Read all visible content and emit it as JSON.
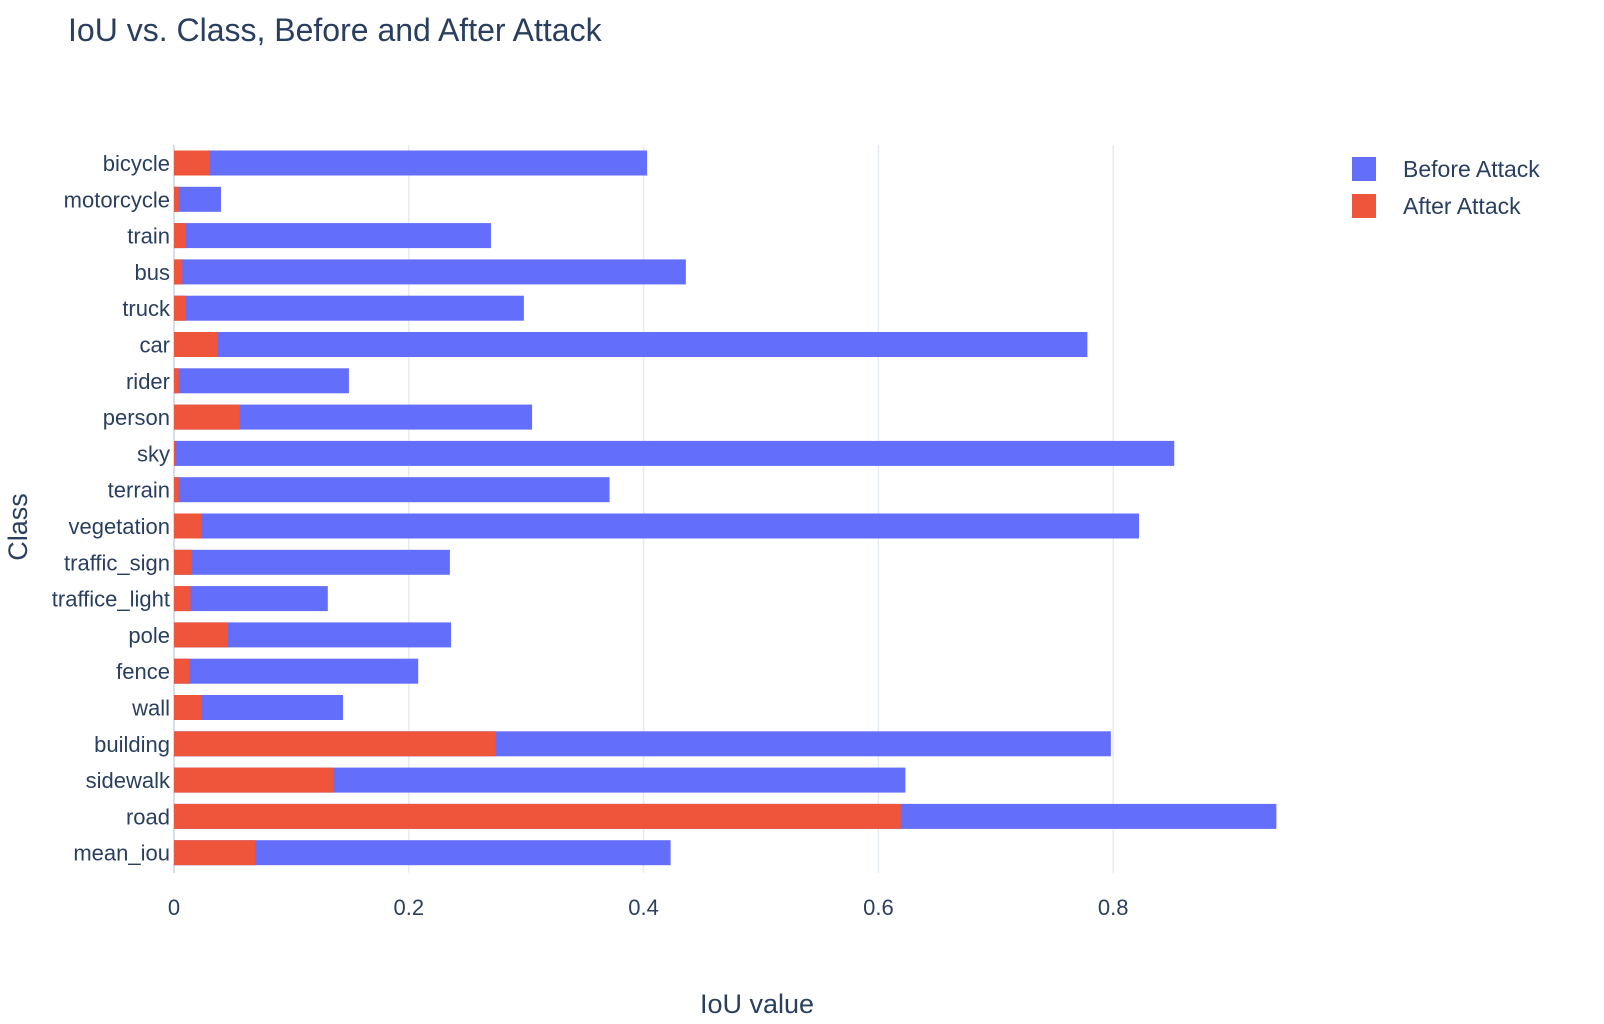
{
  "chart_data": {
    "type": "bar",
    "orientation": "horizontal",
    "barmode": "overlay",
    "title": "IoU vs. Class, Before and After Attack",
    "xlabel": "IoU value",
    "ylabel": "Class",
    "xlim": [
      0,
      0.94
    ],
    "xticks": [
      0,
      0.2,
      0.4,
      0.6,
      0.8
    ],
    "xtick_labels": [
      "0",
      "0.2",
      "0.4",
      "0.6",
      "0.8"
    ],
    "grid": true,
    "legend_position": "top-right",
    "categories": [
      "bicycle",
      "motorcycle",
      "train",
      "bus",
      "truck",
      "car",
      "rider",
      "person",
      "sky",
      "terrain",
      "vegetation",
      "traffic_sign",
      "traffice_light",
      "pole",
      "fence",
      "wall",
      "building",
      "sidewalk",
      "road",
      "mean_iou"
    ],
    "series": [
      {
        "name": "Before Attack",
        "color": "#636efa",
        "values": [
          0.403,
          0.04,
          0.27,
          0.436,
          0.298,
          0.778,
          0.149,
          0.305,
          0.852,
          0.371,
          0.822,
          0.235,
          0.131,
          0.236,
          0.208,
          0.144,
          0.798,
          0.623,
          0.939,
          0.423
        ]
      },
      {
        "name": "After Attack",
        "color": "#ef553b",
        "values": [
          0.03,
          0.004,
          0.01,
          0.007,
          0.01,
          0.037,
          0.004,
          0.056,
          0.001,
          0.004,
          0.023,
          0.015,
          0.014,
          0.046,
          0.013,
          0.023,
          0.274,
          0.136,
          0.619,
          0.069
        ]
      }
    ]
  }
}
